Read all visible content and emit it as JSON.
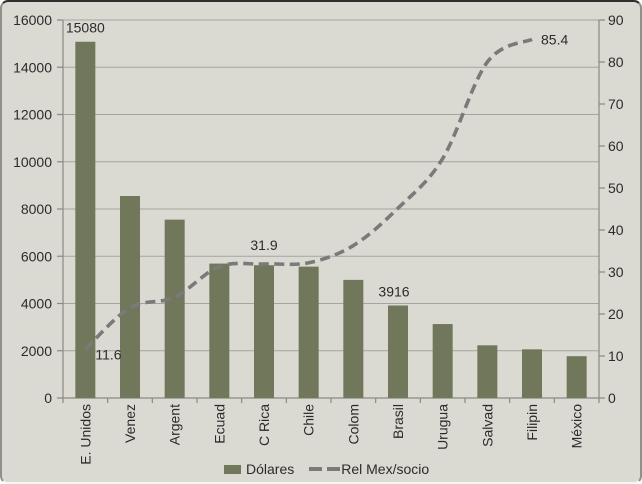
{
  "chart_data": {
    "type": "bar",
    "title": "",
    "xlabel": "",
    "ylabel": "",
    "grid": "horizontal",
    "legend_position": "bottom",
    "categories": [
      "E. Unidos",
      "Venez",
      "Argent",
      "Ecuad",
      "C Rica",
      "Chile",
      "Colom",
      "Brasil",
      "Urugua",
      "Salvad",
      "Filipin",
      "México"
    ],
    "series": [
      {
        "name": "Dólares",
        "type": "bar",
        "axis": "left",
        "values": [
          15080,
          8550,
          7550,
          5690,
          5620,
          5560,
          5000,
          3916,
          3130,
          2230,
          2060,
          1770
        ]
      },
      {
        "name": "Rel Mex/socio",
        "type": "line",
        "dashed": true,
        "smooth": true,
        "axis": "right",
        "values": [
          11.6,
          21.5,
          24,
          31.3,
          31.9,
          32.2,
          36.3,
          45.2,
          57,
          80,
          85.4,
          null
        ]
      }
    ],
    "left_axis": {
      "min": 0,
      "max": 16000,
      "step": 2000,
      "tick_labels": [
        "0",
        "2000",
        "4000",
        "6000",
        "8000",
        "10000",
        "12000",
        "14000",
        "16000"
      ]
    },
    "right_axis": {
      "min": 0,
      "max": 90,
      "step": 10,
      "tick_labels": [
        "0",
        "10",
        "20",
        "30",
        "40",
        "50",
        "60",
        "70",
        "80",
        "90"
      ]
    },
    "point_labels": [
      {
        "series": 0,
        "index": 0,
        "text": "15080",
        "placement": "above-bar",
        "dx": 0
      },
      {
        "series": 0,
        "index": 7,
        "text": "3916",
        "placement": "above-bar",
        "dx": -4
      },
      {
        "series": 1,
        "index": 0,
        "text": "11.6",
        "placement": "below-right"
      },
      {
        "series": 1,
        "index": 4,
        "text": "31.9",
        "placement": "above"
      },
      {
        "series": 1,
        "index": 10,
        "text": "85.4",
        "placement": "right"
      }
    ]
  },
  "colors": {
    "bar": "#71775A",
    "line": "#7A7A7A",
    "background": "#DADAD2",
    "gridline": "#A5A5A0",
    "axis": "#8A8A82",
    "text": "#2B2B2B"
  }
}
